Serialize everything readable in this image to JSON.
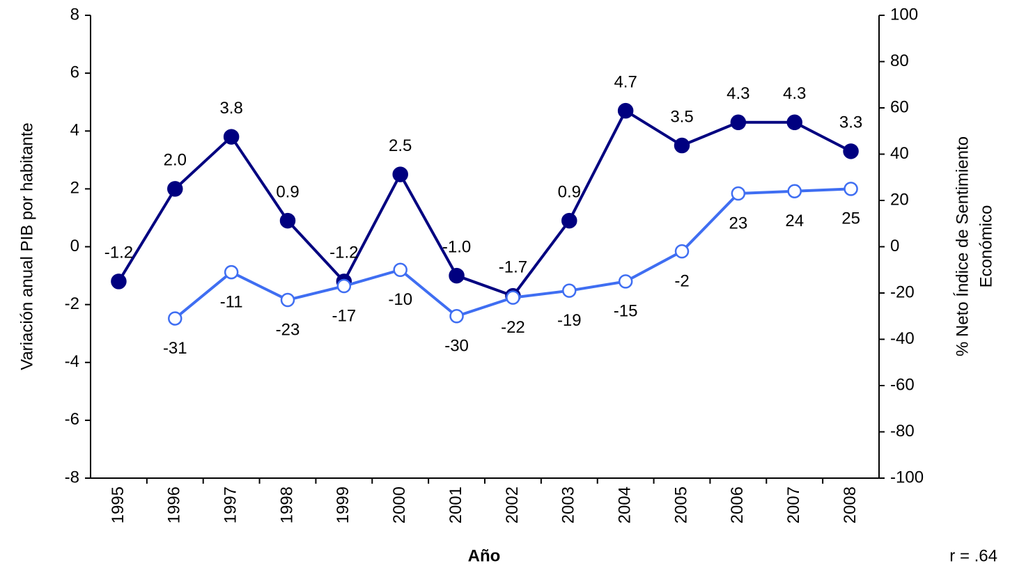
{
  "chart_data": {
    "type": "line",
    "categories": [
      "1995",
      "1996",
      "1997",
      "1998",
      "1999",
      "2000",
      "2001",
      "2002",
      "2003",
      "2004",
      "2005",
      "2006",
      "2007",
      "2008"
    ],
    "series": [
      {
        "color": "#000080",
        "marker": "filled",
        "values": [
          -1.2,
          2.0,
          3.8,
          0.9,
          -1.2,
          2.5,
          -1.0,
          -1.7,
          0.9,
          4.7,
          3.5,
          4.3,
          4.3,
          3.3
        ],
        "value_labels": [
          "-1.2",
          "2.0",
          "3.8",
          "0.9",
          "-1.2",
          "2.5",
          "-1.0",
          "-1.7",
          "0.9",
          "4.7",
          "3.5",
          "4.3",
          "4.3",
          "3.3"
        ]
      },
      {
        "color": "#3f6ef2",
        "marker": "open",
        "axis": "y2",
        "values": [
          null,
          -31,
          -11,
          -23,
          -17,
          -10,
          -30,
          -22,
          -19,
          -15,
          -2,
          23,
          24,
          25
        ]
      }
    ],
    "ylim": [
      -8,
      8
    ],
    "yticks": [
      -8,
      -6,
      -4,
      -2,
      0,
      2,
      4,
      6,
      8
    ],
    "y2lim": [
      -100,
      100
    ],
    "y2ticks": [
      -100,
      -80,
      -60,
      -40,
      -20,
      0,
      20,
      40,
      60,
      80,
      100
    ],
    "y_label": "Variación anual PIB por habitante",
    "y2_label": [
      "% Neto Índice de Sentimiento",
      "Económico"
    ],
    "x_label": "Año",
    "annotation": "r = .64"
  }
}
